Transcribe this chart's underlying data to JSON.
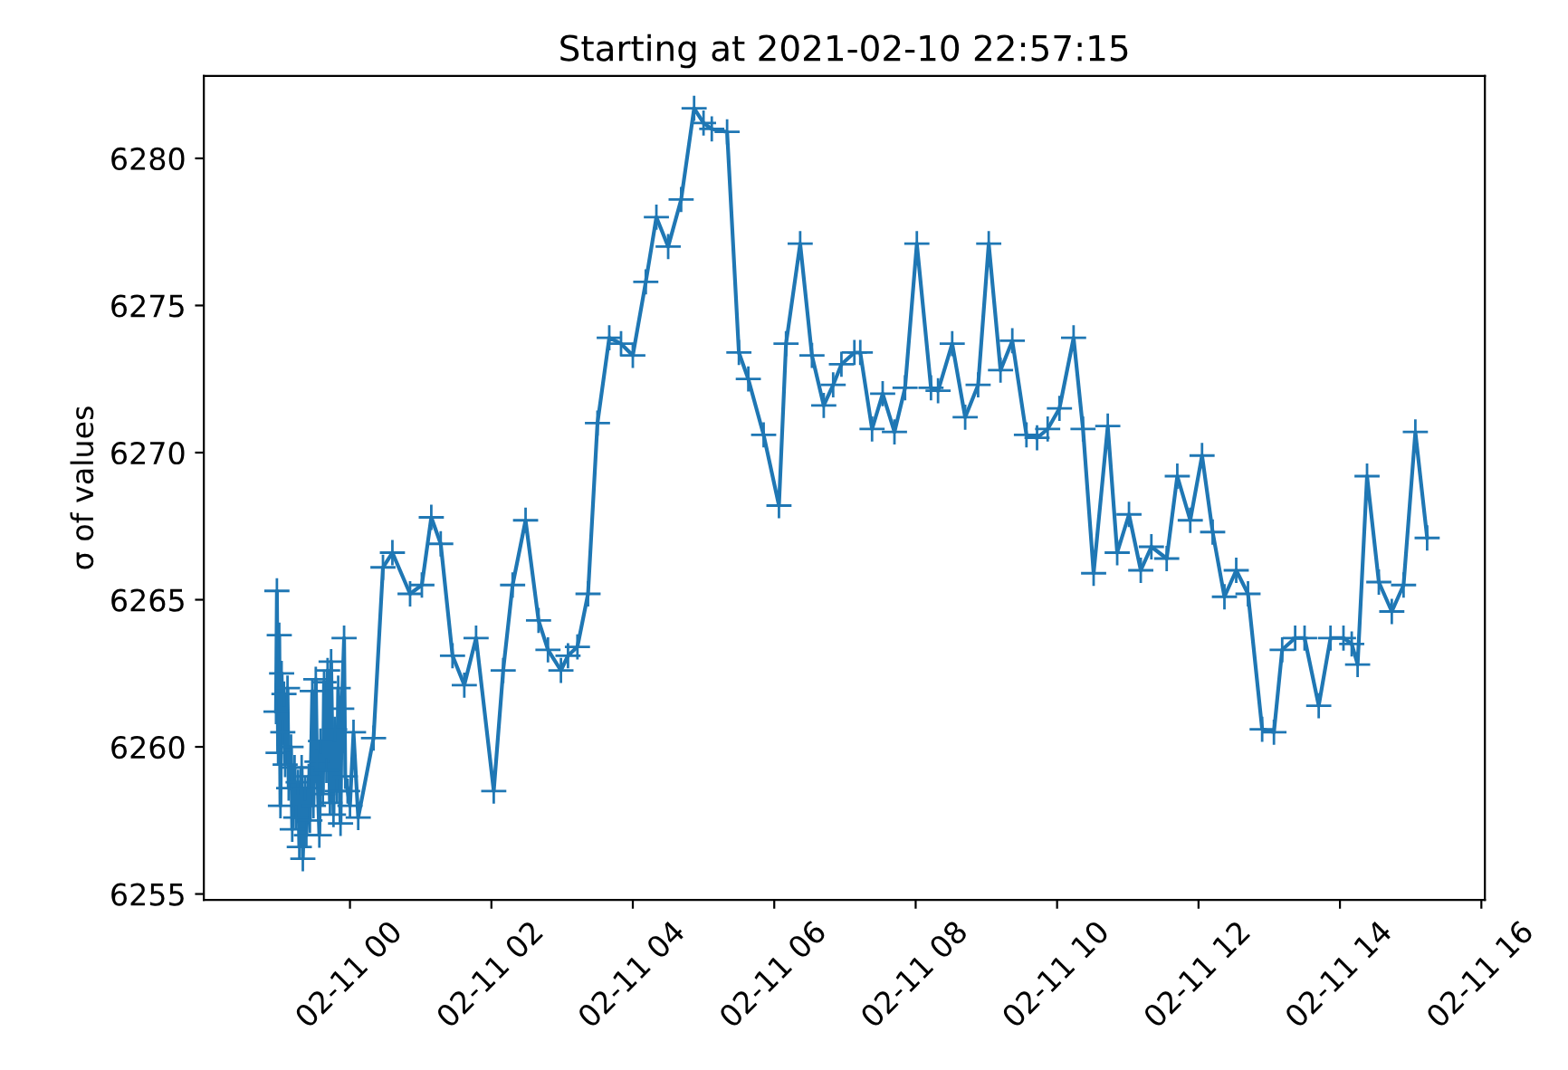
{
  "chart_data": {
    "type": "line",
    "title": "Starting at 2021-02-10 22:57:15",
    "ylabel": "σ of values",
    "marker": "cross",
    "line_style": "solid",
    "grid": false,
    "legend": false,
    "xlim": [
      "2021-02-10T21:56",
      "2021-02-11T16:03"
    ],
    "xticks": [
      {
        "value": "2021-02-11T00:00",
        "label": "02-11 00"
      },
      {
        "value": "2021-02-11T02:00",
        "label": "02-11 02"
      },
      {
        "value": "2021-02-11T04:00",
        "label": "02-11 04"
      },
      {
        "value": "2021-02-11T06:00",
        "label": "02-11 06"
      },
      {
        "value": "2021-02-11T08:00",
        "label": "02-11 08"
      },
      {
        "value": "2021-02-11T10:00",
        "label": "02-11 10"
      },
      {
        "value": "2021-02-11T12:00",
        "label": "02-11 12"
      },
      {
        "value": "2021-02-11T14:00",
        "label": "02-11 14"
      },
      {
        "value": "2021-02-11T16:00",
        "label": "02-11 16"
      }
    ],
    "ylim": [
      6254.8,
      6282.8
    ],
    "yticks": [
      6255,
      6260,
      6265,
      6270,
      6275,
      6280
    ],
    "x": [
      "2021-02-10T22:57:15",
      "2021-02-10T22:58",
      "2021-02-10T22:59",
      "2021-02-10T23:00",
      "2021-02-10T23:01",
      "2021-02-10T23:02",
      "2021-02-10T23:03",
      "2021-02-10T23:04",
      "2021-02-10T23:05",
      "2021-02-10T23:07",
      "2021-02-10T23:08",
      "2021-02-10T23:10",
      "2021-02-10T23:11",
      "2021-02-10T23:13",
      "2021-02-10T23:14",
      "2021-02-10T23:16",
      "2021-02-10T23:17",
      "2021-02-10T23:19",
      "2021-02-10T23:20",
      "2021-02-10T23:22",
      "2021-02-10T23:23",
      "2021-02-10T23:25",
      "2021-02-10T23:26",
      "2021-02-10T23:28",
      "2021-02-10T23:29",
      "2021-02-10T23:31",
      "2021-02-10T23:32",
      "2021-02-10T23:34",
      "2021-02-10T23:35",
      "2021-02-10T23:37",
      "2021-02-10T23:38",
      "2021-02-10T23:40",
      "2021-02-10T23:41",
      "2021-02-10T23:43",
      "2021-02-10T23:44",
      "2021-02-10T23:46",
      "2021-02-10T23:47",
      "2021-02-10T23:49",
      "2021-02-10T23:50",
      "2021-02-10T23:52",
      "2021-02-10T23:53",
      "2021-02-10T23:55",
      "2021-02-10T23:56",
      "2021-02-10T23:58",
      "2021-02-11T00:00",
      "2021-02-11T00:03",
      "2021-02-11T00:07",
      "2021-02-11T00:20",
      "2021-02-11T00:28",
      "2021-02-11T00:36",
      "2021-02-11T00:51",
      "2021-02-11T01:01",
      "2021-02-11T01:09",
      "2021-02-11T01:17",
      "2021-02-11T01:27",
      "2021-02-11T01:37",
      "2021-02-11T01:47",
      "2021-02-11T02:02",
      "2021-02-11T02:10",
      "2021-02-11T02:18",
      "2021-02-11T02:29",
      "2021-02-11T02:40",
      "2021-02-11T02:48",
      "2021-02-11T02:59",
      "2021-02-11T03:05",
      "2021-02-11T03:13",
      "2021-02-11T03:22",
      "2021-02-11T03:30",
      "2021-02-11T03:40",
      "2021-02-11T03:50",
      "2021-02-11T04:00",
      "2021-02-11T04:11",
      "2021-02-11T04:20",
      "2021-02-11T04:30",
      "2021-02-11T04:41",
      "2021-02-11T04:52",
      "2021-02-11T05:00",
      "2021-02-11T05:07",
      "2021-02-11T05:20",
      "2021-02-11T05:30",
      "2021-02-11T05:38",
      "2021-02-11T05:51",
      "2021-02-11T06:04",
      "2021-02-11T06:10",
      "2021-02-11T06:22",
      "2021-02-11T06:32",
      "2021-02-11T06:42",
      "2021-02-11T06:50",
      "2021-02-11T06:57",
      "2021-02-11T07:08",
      "2021-02-11T07:13",
      "2021-02-11T07:23",
      "2021-02-11T07:32",
      "2021-02-11T07:42",
      "2021-02-11T07:51",
      "2021-02-11T08:01",
      "2021-02-11T08:13",
      "2021-02-11T08:19",
      "2021-02-11T08:31",
      "2021-02-11T08:42",
      "2021-02-11T08:53",
      "2021-02-11T09:02",
      "2021-02-11T09:12",
      "2021-02-11T09:22",
      "2021-02-11T09:34",
      "2021-02-11T09:43",
      "2021-02-11T09:52",
      "2021-02-11T10:02",
      "2021-02-11T10:14",
      "2021-02-11T10:22",
      "2021-02-11T10:31",
      "2021-02-11T10:43",
      "2021-02-11T10:51",
      "2021-02-11T11:01",
      "2021-02-11T11:11",
      "2021-02-11T11:20",
      "2021-02-11T11:33",
      "2021-02-11T11:42",
      "2021-02-11T11:53",
      "2021-02-11T12:03",
      "2021-02-11T12:12",
      "2021-02-11T12:22",
      "2021-02-11T12:32",
      "2021-02-11T12:42",
      "2021-02-11T12:54",
      "2021-02-11T13:04",
      "2021-02-11T13:11",
      "2021-02-11T13:22",
      "2021-02-11T13:30",
      "2021-02-11T13:42",
      "2021-02-11T13:52",
      "2021-02-11T14:03",
      "2021-02-11T14:10",
      "2021-02-11T14:15",
      "2021-02-11T14:23",
      "2021-02-11T14:33",
      "2021-02-11T14:44",
      "2021-02-11T14:54",
      "2021-02-11T15:04",
      "2021-02-11T15:14"
    ],
    "series": [
      {
        "color": "#1f77b4",
        "values": [
          6261.2,
          6265.3,
          6259.8,
          6263.8,
          6258.0,
          6262.5,
          6260.5,
          6261.8,
          6259.4,
          6262.0,
          6258.6,
          6260.0,
          6257.2,
          6259.3,
          6257.6,
          6258.8,
          6256.6,
          6259.3,
          6256.2,
          6258.6,
          6257.0,
          6259.0,
          6257.5,
          6261.9,
          6258.0,
          6262.3,
          6259.5,
          6257.0,
          6260.2,
          6258.4,
          6262.2,
          6259.2,
          6262.6,
          6258.1,
          6262.9,
          6257.7,
          6260.6,
          6258.5,
          6262.0,
          6257.4,
          6261.3,
          6263.7,
          6259.0,
          6258.5,
          6258.0,
          6260.5,
          6257.6,
          6260.3,
          6266.1,
          6266.6,
          6265.2,
          6265.5,
          6267.8,
          6266.9,
          6263.1,
          6262.1,
          6263.7,
          6258.5,
          6262.6,
          6265.5,
          6267.7,
          6264.3,
          6263.3,
          6262.6,
          6263.1,
          6263.4,
          6265.2,
          6271.0,
          6273.9,
          6273.7,
          6273.3,
          6275.8,
          6278.0,
          6277.0,
          6278.6,
          6281.7,
          6281.2,
          6281.0,
          6280.9,
          6273.4,
          6272.5,
          6270.6,
          6268.2,
          6273.7,
          6277.1,
          6273.3,
          6271.6,
          6272.3,
          6273.0,
          6273.4,
          6273.4,
          6270.8,
          6272.0,
          6270.7,
          6272.2,
          6277.1,
          6272.2,
          6272.1,
          6273.7,
          6271.2,
          6272.3,
          6277.1,
          6272.8,
          6273.8,
          6270.6,
          6270.5,
          6270.8,
          6271.5,
          6273.9,
          6270.8,
          6265.9,
          6270.9,
          6266.6,
          6267.9,
          6266.0,
          6266.8,
          6266.4,
          6269.2,
          6267.7,
          6269.9,
          6267.3,
          6265.1,
          6266.0,
          6265.2,
          6260.6,
          6260.5,
          6263.3,
          6263.7,
          6263.7,
          6261.4,
          6263.7,
          6263.7,
          6263.5,
          6262.8,
          6269.2,
          6265.6,
          6264.6,
          6265.5,
          6270.7,
          6267.1
        ]
      }
    ]
  }
}
